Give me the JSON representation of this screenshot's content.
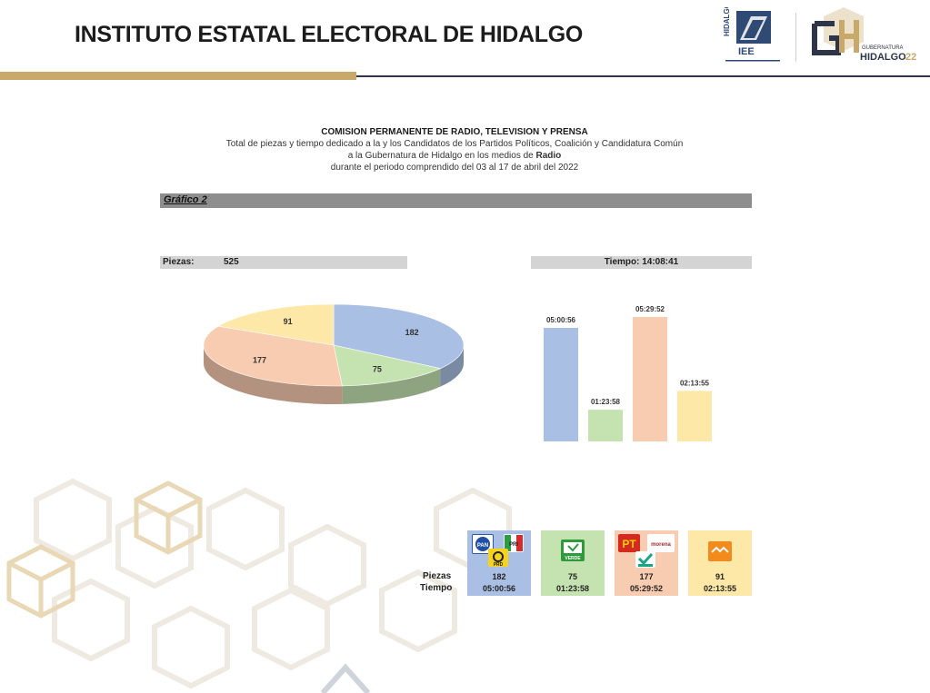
{
  "header": {
    "title": "INSTITUTO ESTATAL ELECTORAL DE HIDALGO",
    "logo_iee_text": "HIDALGO IEE",
    "logo_gh_text": "GUBERNATURA HIDALGO 22"
  },
  "heading": {
    "line1": "COMISION PERMANENTE DE RADIO, TELEVISION Y PRENSA",
    "line2": "Total de piezas y tiempo dedicado a la y los Candidatos de los Partidos Políticos, Coalición y Candidatura Común",
    "line3_prefix": "a la Gubernatura de Hidalgo en los medios de ",
    "line3_bold": "Radio",
    "line4": "durante el periodo comprendido del 03 al 17 de abril del 2022"
  },
  "grafico_label": "Gráfico 2",
  "piezas": {
    "label": "Piezas:",
    "value": "525"
  },
  "tiempo": {
    "label": "Tiempo: 14:08:41"
  },
  "table": {
    "row_piezas": "Piezas",
    "row_tiempo": "Tiempo",
    "cells": [
      {
        "piezas": "182",
        "tiempo": "05:00:56",
        "color": "#a9bfe3",
        "logos": [
          "PAN",
          "PRI",
          "PRD"
        ]
      },
      {
        "piezas": "75",
        "tiempo": "01:23:58",
        "color": "#c5e3b0",
        "logos": [
          "VERDE"
        ]
      },
      {
        "piezas": "177",
        "tiempo": "05:29:52",
        "color": "#f8ccb0",
        "logos": [
          "PT",
          "morena",
          "NUEVA ALIANZA"
        ]
      },
      {
        "piezas": "91",
        "tiempo": "02:13:55",
        "color": "#fde8a8",
        "logos": [
          "MC"
        ]
      }
    ]
  },
  "chart_data": [
    {
      "type": "pie",
      "labels": [
        "182",
        "75",
        "177",
        "91"
      ],
      "values": [
        182,
        75,
        177,
        91
      ],
      "colors": [
        "#a9bfe3",
        "#c5e3b0",
        "#f8ccb0",
        "#fde8a8"
      ]
    },
    {
      "type": "bar",
      "values_seconds": [
        18056,
        5038,
        19792,
        8035
      ],
      "labels": [
        "05:00:56",
        "01:23:58",
        "05:29:52",
        "02:13:55"
      ],
      "colors": [
        "#a9bfe3",
        "#c5e3b0",
        "#f8ccb0",
        "#fde8a8"
      ]
    }
  ]
}
